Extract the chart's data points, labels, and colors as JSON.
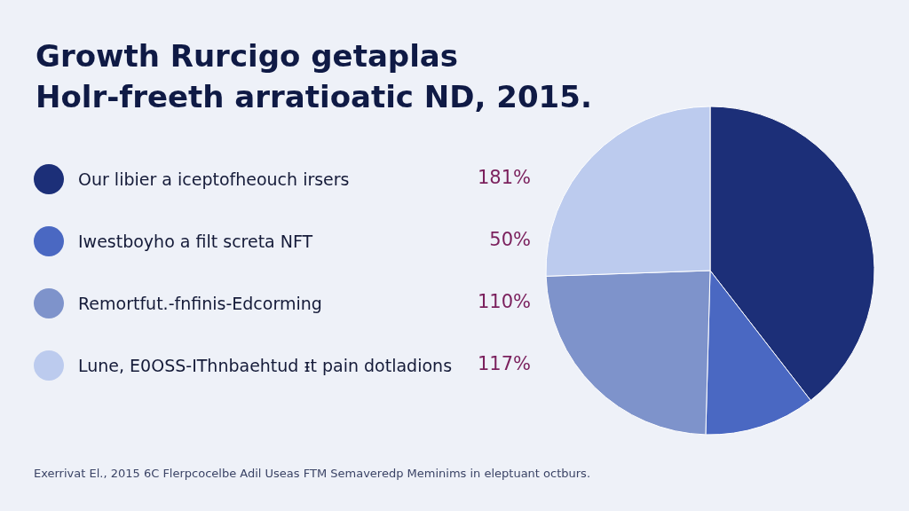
{
  "chart_data": {
    "type": "pie",
    "title": "Growth Rurcigo getaplas\nHolr-freeth arratioatic ND, 2015.",
    "categories": [
      "Our libier a iceptofheouch irsers",
      "Iwestboyho a filt screta NFT",
      "Remortfut.-fnfinis-Edcorming",
      "Lune, E0OSS-IThnbaehtud ᵻt pain dotladions"
    ],
    "values": [
      181,
      50,
      110,
      117
    ],
    "value_labels": [
      "181%",
      "50%",
      "110%",
      "117%"
    ],
    "colors": [
      "#1c2f78",
      "#4a68c2",
      "#7e93cb",
      "#bccbee"
    ],
    "legend": "left",
    "annotations": [
      "Exerrivat El., 2015 6C Flerpcocelbe Adil Useas FTM Semaveredp Meminims in eleptuant octburs."
    ]
  }
}
